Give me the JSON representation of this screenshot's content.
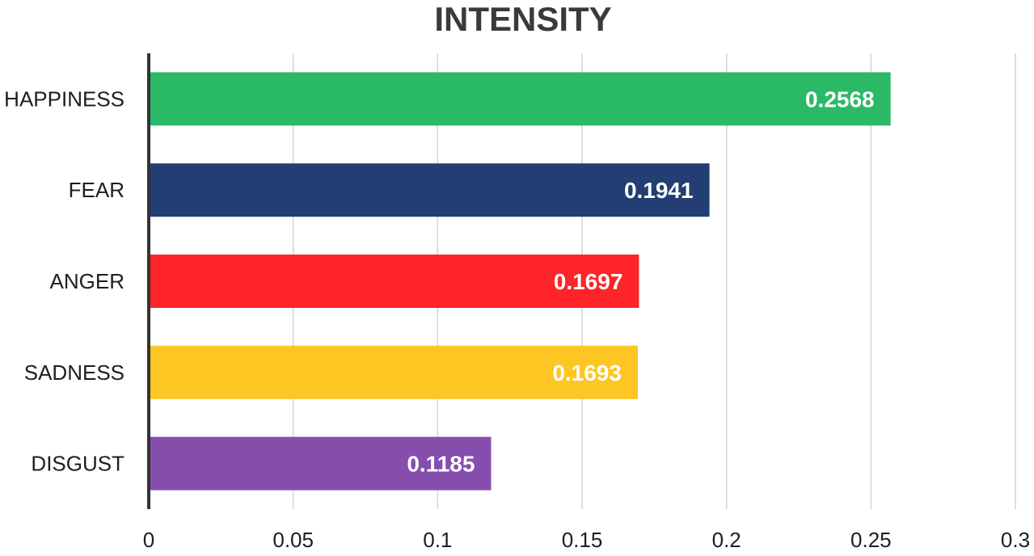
{
  "chart_data": {
    "type": "bar",
    "orientation": "horizontal",
    "title": "INTENSITY",
    "xlabel": "",
    "ylabel": "",
    "categories": [
      "HAPPINESS",
      "FEAR",
      "ANGER",
      "SADNESS",
      "DISGUST"
    ],
    "values": [
      0.2568,
      0.1941,
      0.1697,
      0.1693,
      0.1185
    ],
    "value_labels": [
      "0.2568",
      "0.1941",
      "0.1697",
      "0.1693",
      "0.1185"
    ],
    "colors": [
      "#2aba66",
      "#233e72",
      "#fe2428",
      "#fdc623",
      "#854ead"
    ],
    "xlim": [
      0,
      0.3
    ],
    "x_ticks": [
      0,
      0.05,
      0.1,
      0.15,
      0.2,
      0.25,
      0.3
    ],
    "x_tick_labels": [
      "0",
      "0.05",
      "0.1",
      "0.15",
      "0.2",
      "0.25",
      "0.3"
    ],
    "grid": "vertical",
    "legend": "none"
  }
}
